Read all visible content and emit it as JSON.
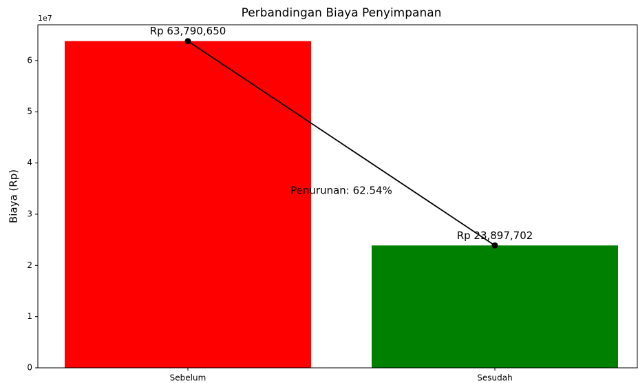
{
  "chart_data": {
    "type": "bar",
    "title": "Perbandingan Biaya Penyimpanan",
    "ylabel": "Biaya (Rp)",
    "y_offset_label": "1e7",
    "categories": [
      "Sebelum",
      "Sesudah"
    ],
    "values": [
      63790650,
      23897702
    ],
    "value_labels": [
      "Rp 63,790,650",
      "Rp 23,897,702"
    ],
    "colors": [
      "#ff0000",
      "#008000"
    ],
    "connect_line": true,
    "annotation": "Penurunan: 62.54%",
    "ylim": [
      0,
      66980000
    ],
    "yticks": [
      {
        "value": 0,
        "label": "0"
      },
      {
        "value": 10000000,
        "label": "1"
      },
      {
        "value": 20000000,
        "label": "2"
      },
      {
        "value": 30000000,
        "label": "3"
      },
      {
        "value": 40000000,
        "label": "4"
      },
      {
        "value": 50000000,
        "label": "5"
      },
      {
        "value": 60000000,
        "label": "6"
      }
    ]
  }
}
